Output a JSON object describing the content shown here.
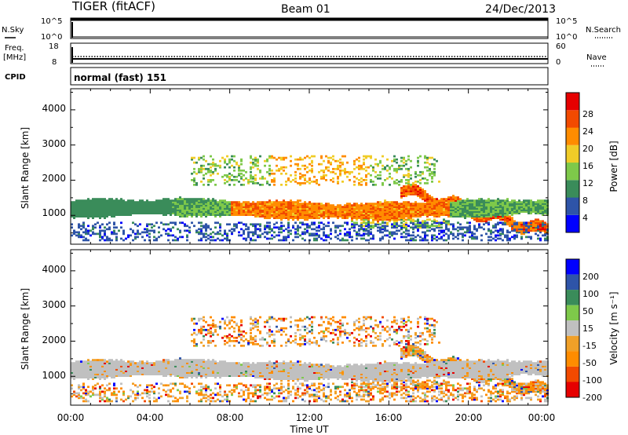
{
  "header": {
    "radar": "TIGER (fitACF)",
    "beam": "Beam 01",
    "date": "24/Dec/2013"
  },
  "noise_panel": {
    "left_label": "N.Sky",
    "right_label": "N.Search",
    "left_ticks": [
      "10^5",
      "10^0"
    ],
    "right_ticks": [
      "10^5",
      "10^0"
    ]
  },
  "freq_panel": {
    "left_label_1": "Freq.",
    "left_label_2": "[MHz]",
    "right_label": "Nave",
    "left_ticks": [
      "18",
      "8"
    ],
    "right_ticks": [
      "60",
      "0"
    ]
  },
  "cpid_panel": {
    "label": "CPID",
    "value": "normal (fast) 151"
  },
  "x_axis": {
    "label": "Time UT",
    "ticks": [
      "00:00",
      "04:00",
      "08:00",
      "12:00",
      "16:00",
      "20:00",
      "00:00"
    ]
  },
  "colors": {
    "power": [
      "#0000ff",
      "#2e54a8",
      "#3a8c5a",
      "#7ec94a",
      "#f0cc28",
      "#ff8c00",
      "#f24a00",
      "#e60000"
    ],
    "velocity_pos": [
      "#0000ff",
      "#2e54a8",
      "#3a8c5a",
      "#7ec94a"
    ],
    "velocity_ground": "#c0c0c0",
    "velocity_neg": [
      "#f0a028",
      "#ff8c00",
      "#f24a00",
      "#e60000"
    ]
  },
  "chart_data": [
    {
      "type": "heatmap",
      "parameter": "power",
      "ylabel": "Slant Range [km]",
      "xlabel": "",
      "x_range_hours": [
        0,
        24
      ],
      "ylim": [
        180,
        4600
      ],
      "y_ticks": [
        "1000",
        "2000",
        "3000",
        "4000"
      ],
      "colorbar": {
        "label": "Power [dB]",
        "ticks": [
          "4",
          "8",
          "12",
          "16",
          "20",
          "24",
          "28"
        ],
        "range": [
          0,
          32
        ]
      },
      "regions": [
        {
          "desc": "main band",
          "t": [
            0,
            24
          ],
          "range_km": [
            900,
            1500
          ],
          "power_db": [
            6,
            28
          ]
        },
        {
          "desc": "near range",
          "t": [
            0,
            24
          ],
          "range_km": [
            200,
            800
          ],
          "power_db": [
            3,
            12
          ]
        },
        {
          "desc": "upper band",
          "t": [
            6,
            18
          ],
          "range_km": [
            1800,
            2700
          ],
          "power_db": [
            8,
            24
          ]
        },
        {
          "desc": "late oblique trace",
          "t": [
            16.5,
            24
          ],
          "range_km": [
            600,
            1700
          ],
          "power_db": [
            16,
            30
          ]
        }
      ]
    },
    {
      "type": "heatmap",
      "parameter": "velocity",
      "ylabel": "Slant Range [km]",
      "xlabel": "Time UT",
      "x_range_hours": [
        0,
        24
      ],
      "ylim": [
        180,
        4600
      ],
      "y_ticks": [
        "1000",
        "2000",
        "3000",
        "4000"
      ],
      "colorbar": {
        "label": "Velocity [m s⁻¹]",
        "ticks": [
          "200",
          "100",
          "50",
          "15",
          "-15",
          "-50",
          "-100",
          "-200"
        ],
        "range": [
          -250,
          250
        ]
      },
      "regions": [
        {
          "desc": "ground scatter",
          "t": [
            0,
            24
          ],
          "range_km": [
            900,
            1500
          ],
          "velocity": [
            -15,
            15
          ]
        },
        {
          "desc": "negative patches",
          "t": [
            14,
            18
          ],
          "range_km": [
            400,
            900
          ],
          "velocity": [
            -100,
            -50
          ]
        },
        {
          "desc": "mixed upper band",
          "t": [
            6,
            18
          ],
          "range_km": [
            1800,
            2600
          ],
          "velocity": [
            -200,
            200
          ]
        }
      ]
    }
  ]
}
